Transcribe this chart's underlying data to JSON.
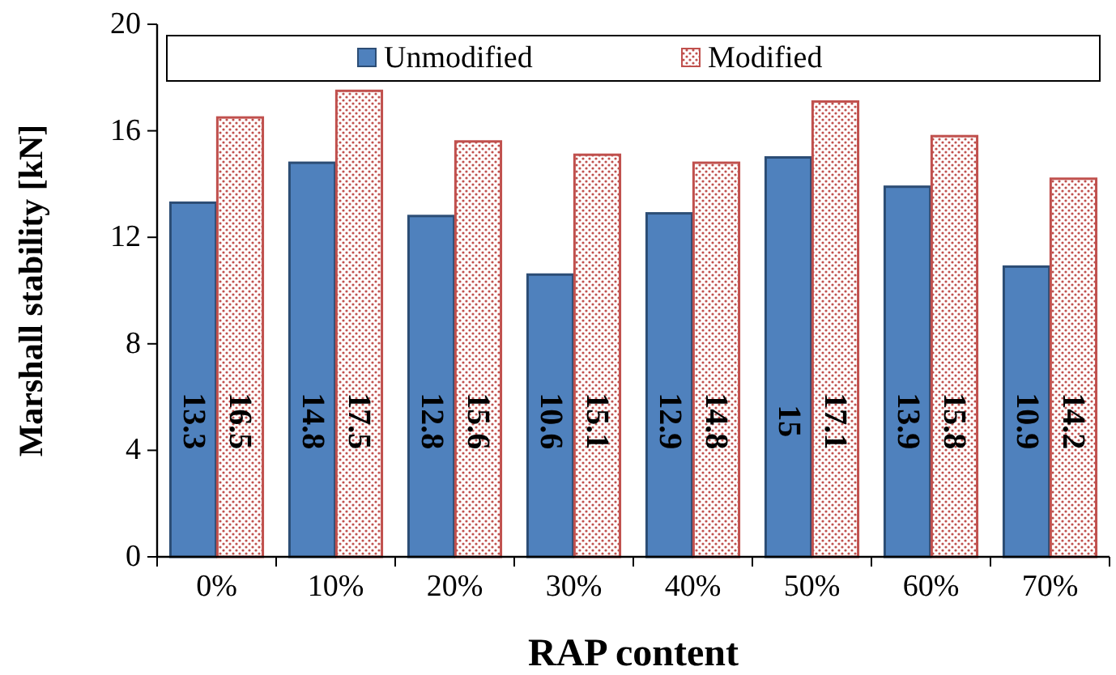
{
  "chart_data": {
    "type": "bar",
    "xlabel": "RAP content",
    "ylabel": "Marshall stability [kN]",
    "categories": [
      "0%",
      "10%",
      "20%",
      "30%",
      "40%",
      "50%",
      "60%",
      "70%"
    ],
    "series": [
      {
        "name": "Unmodified",
        "color": "#4f81bd",
        "values": [
          13.3,
          14.8,
          12.8,
          10.6,
          12.9,
          15,
          13.9,
          10.9
        ]
      },
      {
        "name": "Modified",
        "color": "#c0504d",
        "values": [
          16.5,
          17.5,
          15.6,
          15.1,
          14.8,
          17.1,
          15.8,
          14.2
        ]
      }
    ],
    "ylim": [
      0,
      20
    ],
    "yticks": [
      0,
      4,
      8,
      12,
      16,
      20
    ],
    "data_labels": true,
    "legend": "top",
    "grid": false
  }
}
